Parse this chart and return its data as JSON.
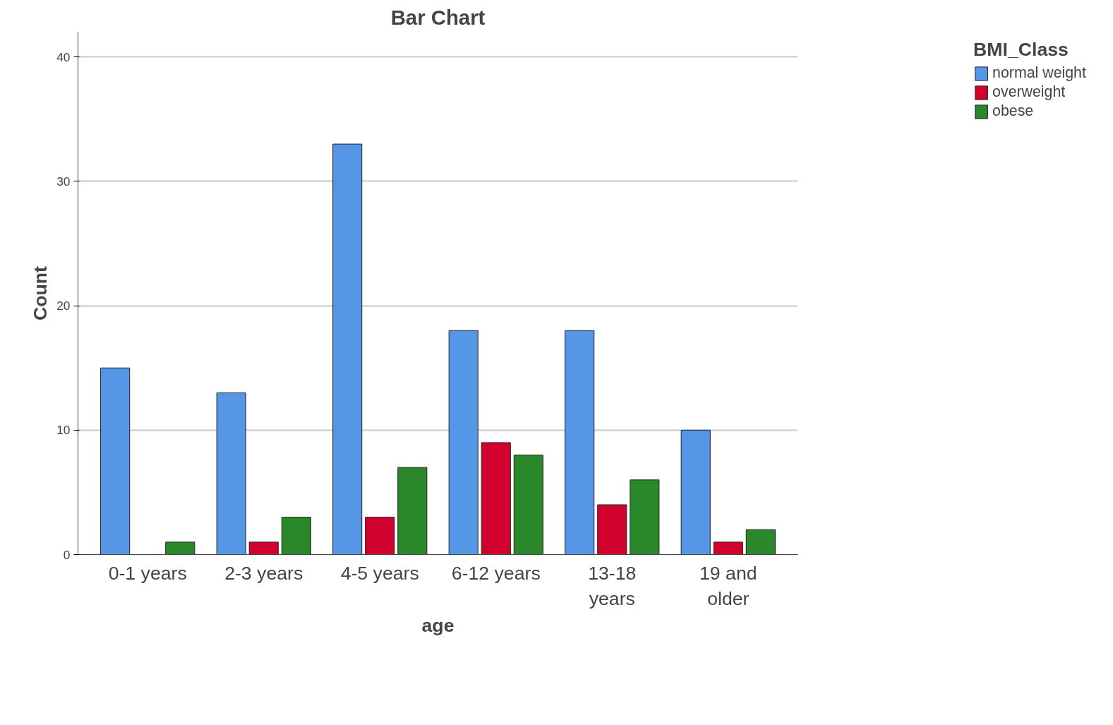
{
  "chart_data": {
    "type": "bar",
    "title": "Bar Chart",
    "xlabel": "age",
    "ylabel": "Count",
    "legend_title": "BMI_Class",
    "categories": [
      "0-1 years",
      "2-3 years",
      "4-5 years",
      "6-12 years",
      "13-18 years",
      "19 and older"
    ],
    "series": [
      {
        "name": "normal weight",
        "color": "#5596e6",
        "values": [
          15,
          13,
          33,
          18,
          18,
          10
        ]
      },
      {
        "name": "overweight",
        "color": "#d2002d",
        "values": [
          null,
          1,
          3,
          9,
          4,
          1
        ]
      },
      {
        "name": "obese",
        "color": "#2a882a",
        "values": [
          1,
          3,
          7,
          8,
          6,
          2
        ]
      }
    ],
    "ylim": [
      0,
      42
    ],
    "yticks": [
      0,
      10,
      20,
      30,
      40
    ],
    "grid": "y",
    "legend": "top right"
  }
}
